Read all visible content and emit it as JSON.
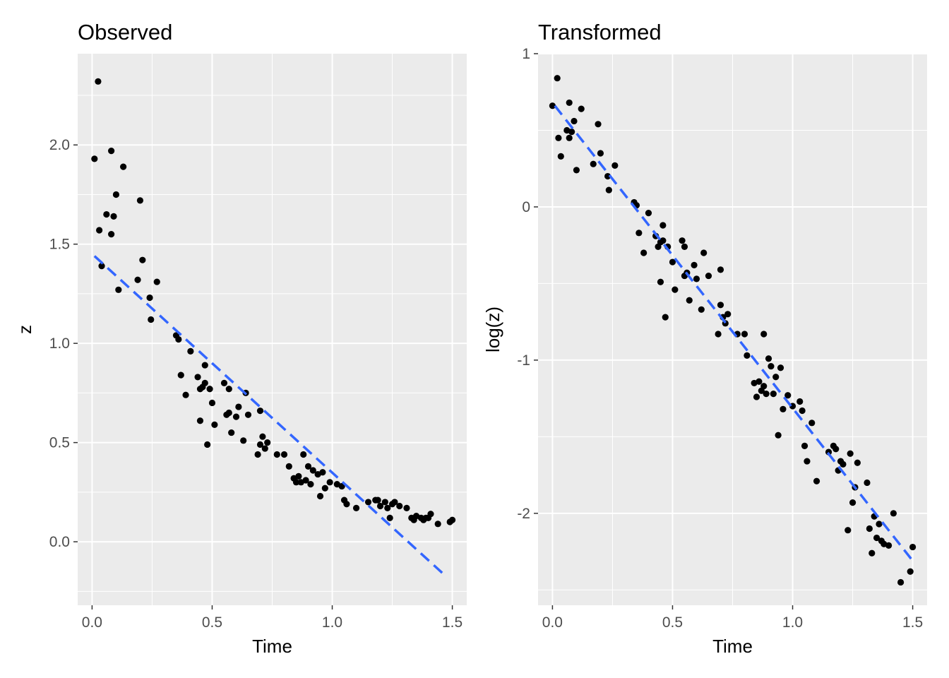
{
  "chart_data": [
    {
      "type": "scatter",
      "title": "Observed",
      "xlabel": "Time",
      "ylabel": "z",
      "xlim": [
        -0.06,
        1.56
      ],
      "ylim": [
        -0.32,
        2.46
      ],
      "xticks": [
        0.0,
        0.5,
        1.0,
        1.5
      ],
      "xtick_labels": [
        "0.0",
        "0.5",
        "1.0",
        "1.5"
      ],
      "yticks": [
        0.0,
        0.5,
        1.0,
        1.5,
        2.0
      ],
      "ytick_labels": [
        "0.0",
        "0.5",
        "1.0",
        "1.5",
        "2.0"
      ],
      "grid": true,
      "background": "#ebebeb",
      "point_color": "#000000",
      "fit_line": {
        "style": "dashed",
        "color": "#3366ff",
        "x": [
          0.01,
          1.47
        ],
        "y": [
          1.44,
          -0.17
        ]
      },
      "points": [
        [
          0.01,
          1.93
        ],
        [
          0.025,
          2.32
        ],
        [
          0.03,
          1.57
        ],
        [
          0.04,
          1.39
        ],
        [
          0.06,
          1.65
        ],
        [
          0.08,
          1.55
        ],
        [
          0.08,
          1.97
        ],
        [
          0.09,
          1.64
        ],
        [
          0.1,
          1.75
        ],
        [
          0.11,
          1.27
        ],
        [
          0.13,
          1.89
        ],
        [
          0.19,
          1.32
        ],
        [
          0.2,
          1.72
        ],
        [
          0.21,
          1.42
        ],
        [
          0.24,
          1.23
        ],
        [
          0.245,
          1.12
        ],
        [
          0.27,
          1.31
        ],
        [
          0.35,
          1.04
        ],
        [
          0.36,
          1.02
        ],
        [
          0.37,
          0.84
        ],
        [
          0.39,
          0.74
        ],
        [
          0.41,
          0.96
        ],
        [
          0.44,
          0.83
        ],
        [
          0.45,
          0.77
        ],
        [
          0.45,
          0.61
        ],
        [
          0.46,
          0.78
        ],
        [
          0.47,
          0.89
        ],
        [
          0.47,
          0.8
        ],
        [
          0.48,
          0.49
        ],
        [
          0.49,
          0.77
        ],
        [
          0.5,
          0.7
        ],
        [
          0.51,
          0.59
        ],
        [
          0.55,
          0.8
        ],
        [
          0.56,
          0.64
        ],
        [
          0.57,
          0.77
        ],
        [
          0.57,
          0.65
        ],
        [
          0.58,
          0.55
        ],
        [
          0.6,
          0.63
        ],
        [
          0.61,
          0.68
        ],
        [
          0.63,
          0.51
        ],
        [
          0.64,
          0.75
        ],
        [
          0.65,
          0.64
        ],
        [
          0.69,
          0.44
        ],
        [
          0.7,
          0.66
        ],
        [
          0.7,
          0.49
        ],
        [
          0.71,
          0.53
        ],
        [
          0.72,
          0.47
        ],
        [
          0.73,
          0.5
        ],
        [
          0.77,
          0.44
        ],
        [
          0.8,
          0.44
        ],
        [
          0.82,
          0.38
        ],
        [
          0.84,
          0.32
        ],
        [
          0.85,
          0.3
        ],
        [
          0.86,
          0.33
        ],
        [
          0.87,
          0.3
        ],
        [
          0.88,
          0.44
        ],
        [
          0.89,
          0.31
        ],
        [
          0.9,
          0.38
        ],
        [
          0.91,
          0.29
        ],
        [
          0.92,
          0.36
        ],
        [
          0.94,
          0.34
        ],
        [
          0.95,
          0.23
        ],
        [
          0.96,
          0.35
        ],
        [
          0.97,
          0.27
        ],
        [
          0.99,
          0.3
        ],
        [
          1.02,
          0.29
        ],
        [
          1.04,
          0.28
        ],
        [
          1.05,
          0.21
        ],
        [
          1.06,
          0.19
        ],
        [
          1.1,
          0.17
        ],
        [
          1.15,
          0.2
        ],
        [
          1.18,
          0.21
        ],
        [
          1.19,
          0.21
        ],
        [
          1.2,
          0.18
        ],
        [
          1.22,
          0.2
        ],
        [
          1.23,
          0.17
        ],
        [
          1.24,
          0.12
        ],
        [
          1.25,
          0.19
        ],
        [
          1.26,
          0.2
        ],
        [
          1.28,
          0.18
        ],
        [
          1.31,
          0.17
        ],
        [
          1.33,
          0.12
        ],
        [
          1.34,
          0.11
        ],
        [
          1.35,
          0.13
        ],
        [
          1.37,
          0.12
        ],
        [
          1.38,
          0.11
        ],
        [
          1.39,
          0.12
        ],
        [
          1.4,
          0.12
        ],
        [
          1.41,
          0.14
        ],
        [
          1.44,
          0.09
        ],
        [
          1.49,
          0.1
        ],
        [
          1.5,
          0.11
        ]
      ]
    },
    {
      "type": "scatter",
      "title": "Transformed",
      "xlabel": "Time",
      "ylabel": "log(z)",
      "xlim": [
        -0.06,
        1.56
      ],
      "ylim": [
        -2.6,
        1.0
      ],
      "xticks": [
        0.0,
        0.5,
        1.0,
        1.5
      ],
      "xtick_labels": [
        "0.0",
        "0.5",
        "1.0",
        "1.5"
      ],
      "yticks": [
        -2,
        -1,
        0,
        1
      ],
      "ytick_labels": [
        "-2",
        "-1",
        "0",
        "1"
      ],
      "grid": true,
      "background": "#ebebeb",
      "point_color": "#000000",
      "fit_line": {
        "style": "dashed",
        "color": "#3366ff",
        "x": [
          0.01,
          1.5
        ],
        "y": [
          0.66,
          -2.31
        ]
      },
      "points": [
        [
          0.0,
          0.66
        ],
        [
          0.02,
          0.84
        ],
        [
          0.025,
          0.45
        ],
        [
          0.035,
          0.33
        ],
        [
          0.06,
          0.5
        ],
        [
          0.07,
          0.45
        ],
        [
          0.07,
          0.68
        ],
        [
          0.08,
          0.49
        ],
        [
          0.09,
          0.56
        ],
        [
          0.1,
          0.24
        ],
        [
          0.12,
          0.64
        ],
        [
          0.17,
          0.28
        ],
        [
          0.19,
          0.54
        ],
        [
          0.2,
          0.35
        ],
        [
          0.23,
          0.2
        ],
        [
          0.235,
          0.11
        ],
        [
          0.26,
          0.27
        ],
        [
          0.34,
          0.03
        ],
        [
          0.35,
          0.01
        ],
        [
          0.36,
          -0.17
        ],
        [
          0.38,
          -0.3
        ],
        [
          0.4,
          -0.04
        ],
        [
          0.43,
          -0.19
        ],
        [
          0.44,
          -0.26
        ],
        [
          0.45,
          -0.49
        ],
        [
          0.45,
          -0.23
        ],
        [
          0.46,
          -0.12
        ],
        [
          0.46,
          -0.22
        ],
        [
          0.47,
          -0.72
        ],
        [
          0.48,
          -0.26
        ],
        [
          0.5,
          -0.36
        ],
        [
          0.51,
          -0.54
        ],
        [
          0.54,
          -0.22
        ],
        [
          0.55,
          -0.45
        ],
        [
          0.55,
          -0.26
        ],
        [
          0.56,
          -0.43
        ],
        [
          0.57,
          -0.61
        ],
        [
          0.59,
          -0.38
        ],
        [
          0.6,
          -0.47
        ],
        [
          0.62,
          -0.67
        ],
        [
          0.63,
          -0.3
        ],
        [
          0.65,
          -0.45
        ],
        [
          0.69,
          -0.83
        ],
        [
          0.7,
          -0.41
        ],
        [
          0.7,
          -0.64
        ],
        [
          0.71,
          -0.72
        ],
        [
          0.72,
          -0.76
        ],
        [
          0.73,
          -0.7
        ],
        [
          0.77,
          -0.83
        ],
        [
          0.8,
          -0.83
        ],
        [
          0.81,
          -0.97
        ],
        [
          0.84,
          -1.15
        ],
        [
          0.85,
          -1.24
        ],
        [
          0.86,
          -1.14
        ],
        [
          0.87,
          -1.2
        ],
        [
          0.88,
          -0.83
        ],
        [
          0.88,
          -1.17
        ],
        [
          0.89,
          -1.22
        ],
        [
          0.9,
          -0.99
        ],
        [
          0.91,
          -1.04
        ],
        [
          0.92,
          -1.22
        ],
        [
          0.93,
          -1.11
        ],
        [
          0.94,
          -1.49
        ],
        [
          0.95,
          -1.05
        ],
        [
          0.96,
          -1.32
        ],
        [
          0.98,
          -1.23
        ],
        [
          1.0,
          -1.3
        ],
        [
          1.03,
          -1.27
        ],
        [
          1.04,
          -1.33
        ],
        [
          1.05,
          -1.56
        ],
        [
          1.06,
          -1.66
        ],
        [
          1.08,
          -1.41
        ],
        [
          1.1,
          -1.79
        ],
        [
          1.15,
          -1.6
        ],
        [
          1.17,
          -1.56
        ],
        [
          1.18,
          -1.58
        ],
        [
          1.19,
          -1.72
        ],
        [
          1.2,
          -1.66
        ],
        [
          1.21,
          -1.68
        ],
        [
          1.23,
          -2.11
        ],
        [
          1.24,
          -1.61
        ],
        [
          1.25,
          -1.93
        ],
        [
          1.26,
          -1.83
        ],
        [
          1.27,
          -1.67
        ],
        [
          1.31,
          -1.8
        ],
        [
          1.32,
          -2.1
        ],
        [
          1.33,
          -2.26
        ],
        [
          1.34,
          -2.02
        ],
        [
          1.35,
          -2.16
        ],
        [
          1.36,
          -2.07
        ],
        [
          1.37,
          -2.18
        ],
        [
          1.38,
          -2.2
        ],
        [
          1.4,
          -2.21
        ],
        [
          1.42,
          -2.0
        ],
        [
          1.45,
          -2.45
        ],
        [
          1.49,
          -2.38
        ],
        [
          1.5,
          -2.22
        ]
      ]
    }
  ]
}
